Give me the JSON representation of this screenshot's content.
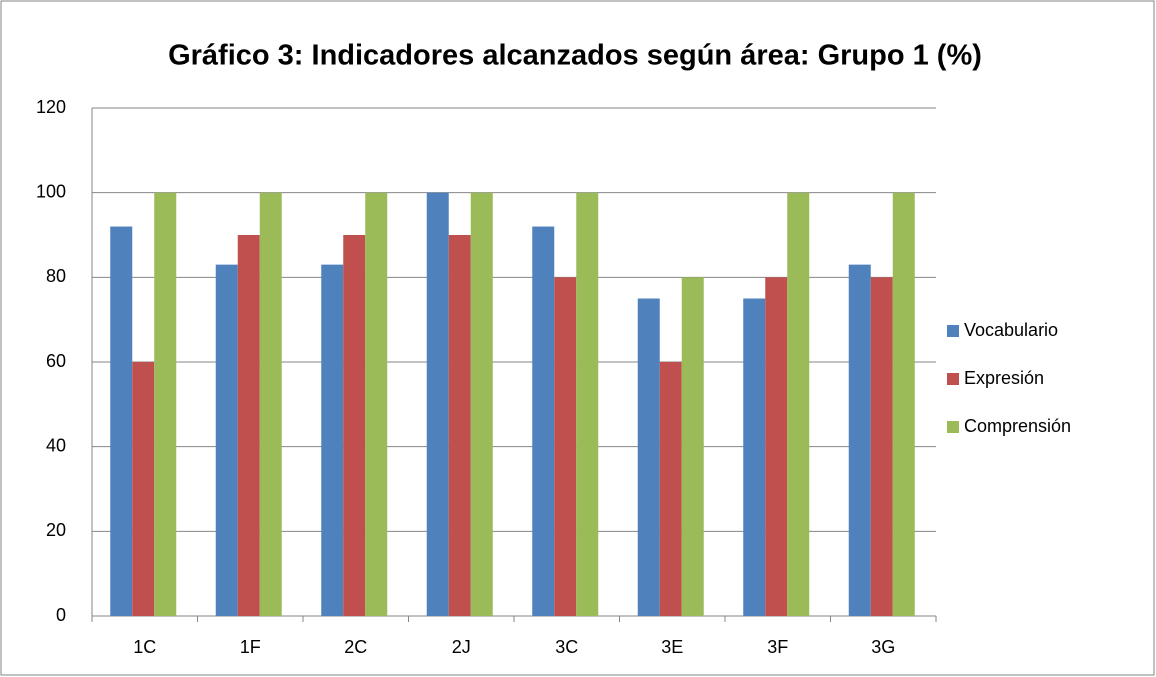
{
  "chart_data": {
    "type": "bar",
    "title": "Gráfico 3: Indicadores alcanzados según área: Grupo 1 (%)",
    "categories": [
      "1C",
      "1F",
      "2C",
      "2J",
      "3C",
      "3E",
      "3F",
      "3G"
    ],
    "series": [
      {
        "name": "Vocabulario",
        "color": "#4f81bd",
        "values": [
          92,
          83,
          83,
          100,
          92,
          75,
          75,
          83
        ]
      },
      {
        "name": "Expresión",
        "color": "#c0504d",
        "values": [
          60,
          90,
          90,
          90,
          80,
          60,
          80,
          80
        ]
      },
      {
        "name": "Comprensión",
        "color": "#9bbb59",
        "values": [
          100,
          100,
          100,
          100,
          100,
          80,
          100,
          100
        ]
      }
    ],
    "ylim": [
      0,
      120
    ],
    "yticks": [
      0,
      20,
      40,
      60,
      80,
      100,
      120
    ],
    "grid": true,
    "legend": "right"
  }
}
